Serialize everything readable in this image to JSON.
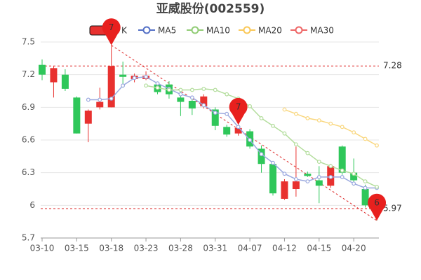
{
  "chart_data": {
    "type": "candlestick",
    "title": "亚威股份(002559)",
    "categories": [
      "03-10",
      null,
      null,
      "03-15",
      null,
      null,
      "03-18",
      null,
      null,
      "03-23",
      null,
      null,
      "03-28",
      null,
      null,
      "03-31",
      null,
      null,
      "04-07",
      null,
      null,
      "04-12",
      null,
      null,
      "04-15",
      null,
      null,
      "04-20",
      null,
      null
    ],
    "candles": {
      "name": "K",
      "up_color": "#e8312f",
      "down_color": "#2fc75a",
      "open": [
        7.29,
        7.13,
        7.2,
        6.99,
        6.75,
        6.9,
        6.9,
        7.2,
        7.16,
        7.16,
        7.11,
        7.11,
        6.99,
        6.96,
        6.91,
        6.88,
        6.72,
        6.66,
        6.68,
        6.52,
        6.38,
        6.06,
        6.15,
        6.29,
        6.23,
        6.18,
        6.54,
        6.3,
        6.15,
        6.02
      ],
      "high": [
        7.34,
        7.28,
        7.25,
        7.0,
        6.88,
        7.08,
        7.47,
        7.32,
        7.21,
        7.23,
        7.13,
        7.14,
        7.04,
        6.98,
        7.02,
        6.9,
        6.74,
        6.74,
        6.7,
        6.55,
        6.4,
        6.24,
        6.54,
        6.31,
        6.36,
        6.38,
        6.55,
        6.43,
        6.19,
        6.04
      ],
      "low": [
        7.15,
        6.99,
        7.05,
        6.66,
        6.58,
        6.88,
        6.9,
        7.08,
        7.13,
        7.15,
        7.02,
        6.98,
        6.82,
        6.83,
        6.89,
        6.69,
        6.63,
        6.64,
        6.52,
        6.3,
        6.09,
        6.05,
        6.08,
        6.26,
        6.02,
        6.16,
        6.28,
        6.18,
        5.98,
        5.86
      ],
      "close": [
        7.2,
        7.26,
        7.07,
        6.66,
        6.87,
        6.95,
        7.28,
        7.18,
        7.19,
        7.19,
        7.04,
        7.02,
        6.95,
        6.89,
        7.0,
        6.73,
        6.65,
        6.71,
        6.54,
        6.38,
        6.11,
        6.22,
        6.22,
        6.27,
        6.18,
        6.36,
        6.3,
        6.23,
        6.0,
        5.96
      ]
    },
    "series": [
      {
        "name": "MA5",
        "color": "#5470c6",
        "line_color": "#9aa8df",
        "values": [
          null,
          null,
          null,
          null,
          6.97,
          6.97,
          6.98,
          7.1,
          7.17,
          7.18,
          7.12,
          7.07,
          7.02,
          6.99,
          6.92,
          6.85,
          6.84,
          6.72,
          6.6,
          6.47,
          6.39,
          6.29,
          6.24,
          6.22,
          6.26,
          6.26,
          6.26,
          6.2,
          6.16,
          6.16
        ]
      },
      {
        "name": "MA10",
        "color": "#91cc75",
        "line_color": "#b3dd9c",
        "values": [
          null,
          null,
          null,
          null,
          null,
          null,
          null,
          null,
          null,
          7.1,
          7.08,
          7.06,
          7.06,
          7.06,
          7.07,
          7.06,
          7.02,
          6.98,
          6.91,
          6.8,
          6.73,
          6.66,
          6.56,
          6.48,
          6.4,
          6.36,
          6.32,
          6.29,
          6.22,
          6.17
        ]
      },
      {
        "name": "MA20",
        "color": "#fac858",
        "line_color": "#f9d77f",
        "values": [
          null,
          null,
          null,
          null,
          null,
          null,
          null,
          null,
          null,
          null,
          null,
          null,
          null,
          null,
          null,
          null,
          null,
          null,
          null,
          null,
          null,
          6.88,
          6.84,
          6.8,
          6.78,
          6.75,
          6.72,
          6.67,
          6.61,
          6.55
        ]
      },
      {
        "name": "MA30",
        "color": "#ee6666",
        "line_color": "#f29a9a",
        "values": [
          null,
          null,
          null,
          null,
          null,
          null,
          null,
          null,
          null,
          null,
          null,
          null,
          null,
          null,
          null,
          null,
          null,
          null,
          null,
          null,
          null,
          null,
          null,
          null,
          null,
          null,
          null,
          null,
          null,
          null
        ]
      }
    ],
    "hlines": [
      7.28,
      5.97
    ],
    "pins": [
      {
        "text": "7",
        "index": 6,
        "value": 7.47
      },
      {
        "text": "7",
        "index": 17,
        "value": 6.74
      },
      {
        "text": "6",
        "index": 29,
        "value": 5.86
      }
    ],
    "ylim": [
      5.7,
      7.5
    ],
    "yticks": [
      5.7,
      6,
      6.3,
      6.6,
      6.9,
      7.2,
      7.5
    ],
    "grid": true
  }
}
